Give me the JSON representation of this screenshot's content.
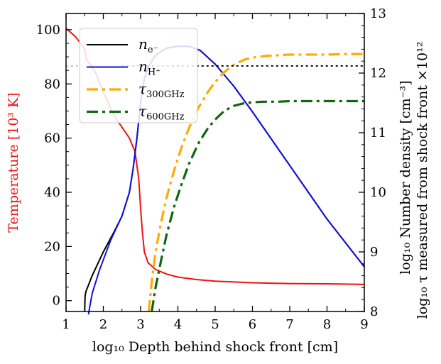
{
  "chart_data": {
    "type": "line",
    "xlabel": "log₁₀ Depth behind shock front [cm]",
    "ylabel_left": "Temperature [10³ K]",
    "ylabel_right_line1": "log₁₀ Number density [cm⁻³]",
    "ylabel_right_line2": "log₁₀ τ measured from shock front ×10¹²",
    "xlim": [
      1,
      9
    ],
    "ylim_left": [
      -4,
      106
    ],
    "ylim_right": [
      8,
      13
    ],
    "x_ticks": [
      "1",
      "2",
      "3",
      "4",
      "5",
      "6",
      "7",
      "8",
      "9"
    ],
    "y_left_ticks": [
      "0",
      "20",
      "40",
      "60",
      "80",
      "100"
    ],
    "y_right_ticks": [
      "8",
      "9",
      "10",
      "11",
      "12",
      "13"
    ],
    "colors": {
      "temperature": "#ee1111",
      "ne": "#000000",
      "nh": "#1111dd",
      "tau300": "#ffaa00",
      "tau600": "#116611",
      "reference": "#000000"
    },
    "series": [
      {
        "name": "Temperature",
        "axis": "left",
        "style": "solid",
        "color_key": "temperature",
        "x": [
          1.0,
          1.25,
          1.5,
          1.55,
          1.8,
          2.0,
          2.3,
          2.5,
          2.7,
          2.85,
          2.95,
          3.0,
          3.05,
          3.1,
          3.2,
          3.4,
          3.7,
          4.0,
          4.5,
          5.0,
          6.0,
          7.0,
          8.0,
          9.0
        ],
        "values": [
          100.5,
          97.5,
          93.0,
          89.0,
          84.0,
          77.0,
          68.0,
          64.0,
          60.0,
          55.0,
          45.0,
          34.0,
          25.0,
          18.0,
          14.0,
          11.5,
          9.8,
          8.7,
          7.8,
          7.2,
          6.6,
          6.3,
          6.2,
          6.0
        ]
      },
      {
        "name": "n_e-",
        "legend_main": "n",
        "legend_sub": "e⁻",
        "axis": "right",
        "style": "solid",
        "color_key": "ne",
        "x": [
          1.5,
          1.51,
          1.53,
          1.7,
          2.0,
          2.3,
          2.5,
          2.7,
          2.8,
          2.9,
          3.0,
          3.1,
          3.2,
          3.4,
          3.7,
          4.0,
          4.3,
          4.6,
          5.0,
          5.5,
          6.0,
          6.5,
          7.0,
          7.5,
          8.0,
          8.5,
          9.0
        ],
        "values": [
          8.0,
          8.25,
          8.33,
          8.6,
          9.0,
          9.35,
          9.6,
          10.0,
          10.4,
          10.9,
          11.5,
          11.9,
          12.1,
          12.3,
          12.42,
          12.45,
          12.45,
          12.38,
          12.15,
          11.78,
          11.35,
          10.9,
          10.45,
          10.0,
          9.55,
          9.15,
          8.75
        ]
      },
      {
        "name": "n_H+",
        "legend_main": "n",
        "legend_sub": "H⁺",
        "axis": "right",
        "style": "solid",
        "color_key": "nh",
        "x": [
          1.6,
          1.7,
          1.9,
          2.2,
          2.5,
          2.7,
          2.8,
          2.9,
          3.0,
          3.1,
          3.2,
          3.4,
          3.7,
          4.0,
          4.3,
          4.6,
          5.0,
          5.5,
          6.0,
          6.5,
          7.0,
          7.5,
          8.0,
          8.5,
          9.0
        ],
        "values": [
          7.95,
          8.3,
          8.7,
          9.2,
          9.6,
          10.0,
          10.4,
          10.9,
          11.5,
          11.9,
          12.1,
          12.3,
          12.42,
          12.45,
          12.45,
          12.38,
          12.15,
          11.78,
          11.35,
          10.9,
          10.45,
          10.0,
          9.55,
          9.15,
          8.75
        ]
      },
      {
        "name": "tau_300GHz",
        "legend_main": "τ",
        "legend_sub": "300GHz",
        "axis": "right",
        "style": "dashdot",
        "color_key": "tau300",
        "x": [
          3.22,
          3.3,
          3.4,
          3.55,
          3.7,
          3.9,
          4.1,
          4.3,
          4.55,
          4.8,
          5.0,
          5.25,
          5.5,
          5.8,
          6.1,
          6.4,
          6.7,
          7.0,
          7.5,
          8.0,
          8.5,
          9.0
        ],
        "values": [
          8.0,
          8.5,
          9.0,
          9.5,
          9.92,
          10.37,
          10.76,
          11.08,
          11.42,
          11.68,
          11.85,
          12.02,
          12.14,
          12.23,
          12.27,
          12.29,
          12.3,
          12.31,
          12.31,
          12.31,
          12.32,
          12.32
        ]
      },
      {
        "name": "tau_600GHz",
        "legend_main": "τ",
        "legend_sub": "600GHz",
        "axis": "right",
        "style": "dashdot",
        "color_key": "tau600",
        "x": [
          3.3,
          3.4,
          3.55,
          3.7,
          3.9,
          4.1,
          4.3,
          4.55,
          4.8,
          5.0,
          5.25,
          5.5,
          5.75,
          6.0,
          6.3,
          6.7,
          7.0,
          7.5,
          8.0,
          8.5,
          9.0
        ],
        "values": [
          8.0,
          8.4,
          8.86,
          9.3,
          9.76,
          10.14,
          10.48,
          10.82,
          11.07,
          11.22,
          11.37,
          11.45,
          11.49,
          11.51,
          11.52,
          11.52,
          11.53,
          11.53,
          11.53,
          11.53,
          11.53
        ]
      },
      {
        "name": "reference",
        "axis": "right",
        "style": "dotted",
        "color_key": "reference",
        "x": [
          2.5,
          9.0
        ],
        "values": [
          12.12,
          12.12
        ]
      },
      {
        "name": "reference-faint",
        "axis": "right",
        "style": "faint",
        "color_key": "reference",
        "x": [
          1.0,
          2.5
        ],
        "values": [
          12.12,
          12.12
        ]
      }
    ]
  }
}
